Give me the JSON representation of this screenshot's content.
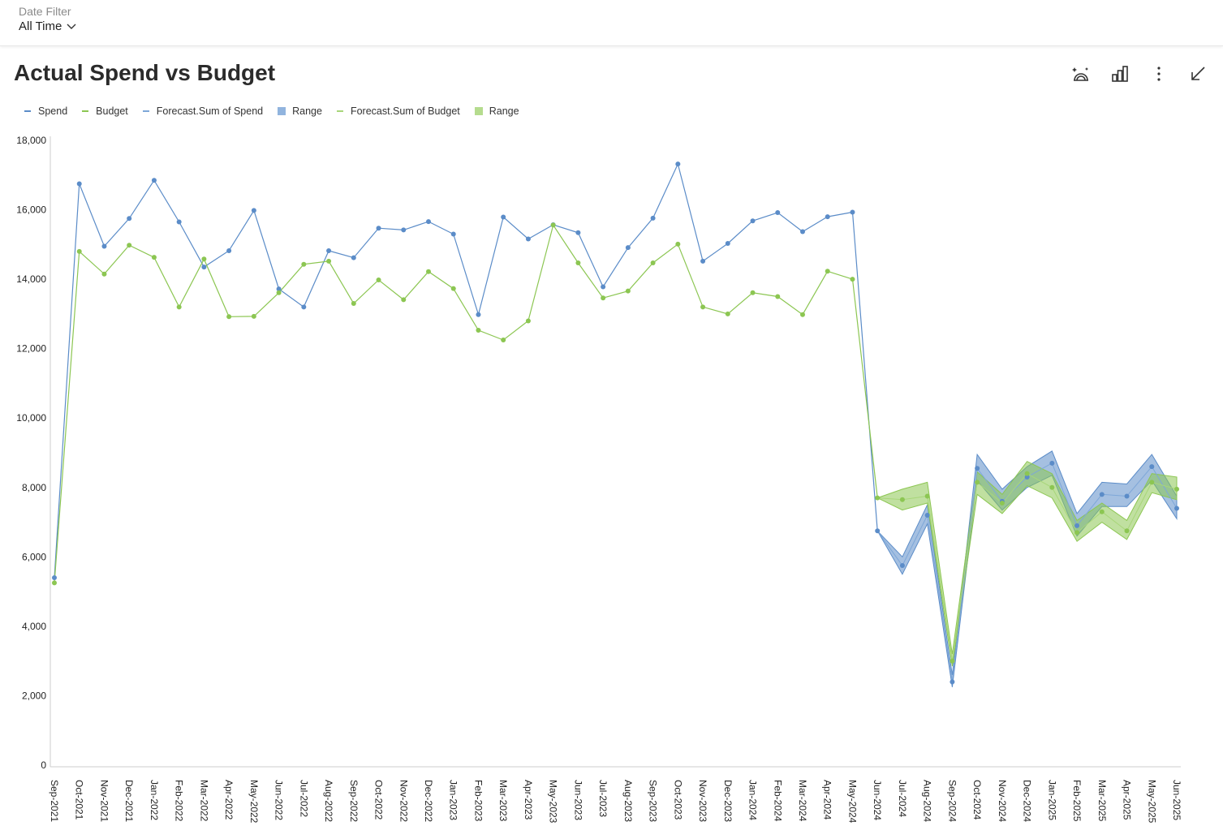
{
  "filter": {
    "label": "Date Filter",
    "value": "All Time"
  },
  "title": "Actual Spend vs Budget",
  "toolbar": [
    {
      "name": "forecast-icon"
    },
    {
      "name": "chart-type-icon"
    },
    {
      "name": "more-options-icon"
    },
    {
      "name": "minimize-icon"
    }
  ],
  "colors": {
    "spend": "#5b8cc8",
    "budget": "#8cc652",
    "forecast_spend": "#7ea7d8",
    "range_spend": "#5b8cc8",
    "forecast_budget": "#a8d67a",
    "range_budget": "#8cc652",
    "axis": "#cccccc",
    "text": "#222222"
  },
  "legend": [
    {
      "label": "Spend",
      "kind": "line",
      "color": "#5b8cc8"
    },
    {
      "label": "Budget",
      "kind": "line",
      "color": "#8cc652"
    },
    {
      "label": "Forecast.Sum of Spend",
      "kind": "line",
      "color": "#7ea7d8"
    },
    {
      "label": "Range",
      "kind": "box",
      "color": "#7ea7d8"
    },
    {
      "label": "Forecast.Sum of Budget",
      "kind": "line",
      "color": "#a8d67a"
    },
    {
      "label": "Range",
      "kind": "box",
      "color": "#a8d67a"
    }
  ],
  "chart_data": {
    "type": "line",
    "title": "Actual Spend vs Budget",
    "xlabel": "",
    "ylabel": "",
    "ylim": [
      0,
      18000
    ],
    "yticks": [
      0,
      2000,
      4000,
      6000,
      8000,
      10000,
      12000,
      14000,
      16000,
      18000
    ],
    "ytick_labels": [
      "0",
      "2,000",
      "4,000",
      "6,000",
      "8,000",
      "10,000",
      "12,000",
      "14,000",
      "16,000",
      "18,000"
    ],
    "grid": false,
    "legend_position": "top-left",
    "categories": [
      "Sep-2021",
      "Oct-2021",
      "Nov-2021",
      "Dec-2021",
      "Jan-2022",
      "Feb-2022",
      "Mar-2022",
      "Apr-2022",
      "May-2022",
      "Jun-2022",
      "Jul-2022",
      "Aug-2022",
      "Sep-2022",
      "Oct-2022",
      "Nov-2022",
      "Dec-2022",
      "Jan-2023",
      "Feb-2023",
      "Mar-2023",
      "Apr-2023",
      "May-2023",
      "Jun-2023",
      "Jul-2023",
      "Aug-2023",
      "Sep-2023",
      "Oct-2023",
      "Nov-2023",
      "Dec-2023",
      "Jan-2024",
      "Feb-2024",
      "Mar-2024",
      "Apr-2024",
      "May-2024",
      "Jun-2024",
      "Jul-2024",
      "Aug-2024",
      "Sep-2024",
      "Oct-2024",
      "Nov-2024",
      "Dec-2024",
      "Jan-2025",
      "Feb-2025",
      "Mar-2025",
      "Apr-2025",
      "May-2025",
      "Jun-2025"
    ],
    "series": [
      {
        "name": "Spend",
        "values": [
          5400,
          16750,
          14950,
          15750,
          16850,
          15650,
          14350,
          14820,
          15980,
          13720,
          13200,
          14820,
          14620,
          15470,
          15420,
          15660,
          15300,
          12980,
          15790,
          15160,
          15570,
          15340,
          13780,
          14910,
          15760,
          17320,
          14520,
          15030,
          15680,
          15920,
          15370,
          15800,
          15930,
          6750,
          5750,
          7200,
          2400,
          8550,
          7600,
          8300,
          8700,
          6900,
          7800,
          7750,
          8600,
          7400
        ]
      },
      {
        "name": "Budget",
        "values": [
          5250,
          14800,
          14150,
          14980,
          14630,
          13200,
          14580,
          12920,
          12930,
          13610,
          14430,
          14520,
          13300,
          13980,
          13410,
          14220,
          13730,
          12530,
          12250,
          12800,
          15560,
          14470,
          13460,
          13660,
          14470,
          15010,
          13200,
          13000,
          13610,
          13500,
          12980,
          14230,
          14000,
          7700,
          7650,
          7750,
          3000,
          8150,
          7550,
          8400,
          8000,
          6700,
          7300,
          6750,
          8150,
          7950
        ]
      },
      {
        "name": "Forecast.Sum of Spend",
        "values": [
          null,
          null,
          null,
          null,
          null,
          null,
          null,
          null,
          null,
          null,
          null,
          null,
          null,
          null,
          null,
          null,
          null,
          null,
          null,
          null,
          null,
          null,
          null,
          null,
          null,
          null,
          null,
          null,
          null,
          null,
          null,
          null,
          null,
          6750,
          5750,
          7200,
          2400,
          8550,
          7600,
          8300,
          8700,
          6900,
          7800,
          7750,
          8600,
          7400
        ]
      },
      {
        "name": "Range",
        "lower": [
          null,
          null,
          null,
          null,
          null,
          null,
          null,
          null,
          null,
          null,
          null,
          null,
          null,
          null,
          null,
          null,
          null,
          null,
          null,
          null,
          null,
          null,
          null,
          null,
          null,
          null,
          null,
          null,
          null,
          null,
          null,
          null,
          null,
          6750,
          5500,
          6950,
          2250,
          8200,
          7350,
          8000,
          8350,
          6600,
          7450,
          7450,
          8200,
          7100
        ],
        "upper": [
          null,
          null,
          null,
          null,
          null,
          null,
          null,
          null,
          null,
          null,
          null,
          null,
          null,
          null,
          null,
          null,
          null,
          null,
          null,
          null,
          null,
          null,
          null,
          null,
          null,
          null,
          null,
          null,
          null,
          null,
          null,
          null,
          null,
          6750,
          6000,
          7500,
          2600,
          8950,
          7950,
          8600,
          9050,
          7250,
          8150,
          8100,
          8950,
          7750
        ]
      },
      {
        "name": "Forecast.Sum of Budget",
        "values": [
          null,
          null,
          null,
          null,
          null,
          null,
          null,
          null,
          null,
          null,
          null,
          null,
          null,
          null,
          null,
          null,
          null,
          null,
          null,
          null,
          null,
          null,
          null,
          null,
          null,
          null,
          null,
          null,
          null,
          null,
          null,
          null,
          null,
          7700,
          7650,
          7750,
          3000,
          8150,
          7550,
          8400,
          8000,
          6700,
          7300,
          6750,
          8150,
          7950
        ]
      },
      {
        "name": "Range",
        "lower": [
          null,
          null,
          null,
          null,
          null,
          null,
          null,
          null,
          null,
          null,
          null,
          null,
          null,
          null,
          null,
          null,
          null,
          null,
          null,
          null,
          null,
          null,
          null,
          null,
          null,
          null,
          null,
          null,
          null,
          null,
          null,
          null,
          null,
          7700,
          7350,
          7550,
          2850,
          7800,
          7250,
          8050,
          7700,
          6450,
          7000,
          6500,
          7850,
          7650
        ],
        "upper": [
          null,
          null,
          null,
          null,
          null,
          null,
          null,
          null,
          null,
          null,
          null,
          null,
          null,
          null,
          null,
          null,
          null,
          null,
          null,
          null,
          null,
          null,
          null,
          null,
          null,
          null,
          null,
          null,
          null,
          null,
          null,
          null,
          null,
          7700,
          7950,
          8150,
          3200,
          8450,
          7800,
          8750,
          8400,
          7050,
          7550,
          7050,
          8400,
          8300
        ]
      }
    ]
  }
}
